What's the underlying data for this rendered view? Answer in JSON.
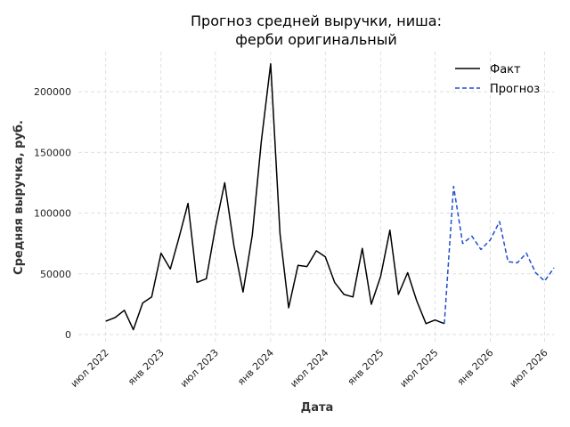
{
  "chart_data": {
    "type": "line",
    "title": [
      "Прогноз средней выручки, ниша:",
      "ферби оригинальный"
    ],
    "xlabel": "Дата",
    "ylabel": "Средняя выручка, руб.",
    "ylim": [
      -8000,
      233000
    ],
    "xlim": [
      "2022-04-01",
      "2026-08-01"
    ],
    "grid": true,
    "legend_position": "top-right",
    "y_ticks": [
      0,
      50000,
      100000,
      150000,
      200000
    ],
    "x_ticks": [
      {
        "label": "июл 2022",
        "date": "2022-07-01"
      },
      {
        "label": "янв 2023",
        "date": "2023-01-01"
      },
      {
        "label": "июл 2023",
        "date": "2023-07-01"
      },
      {
        "label": "янв 2024",
        "date": "2024-01-01"
      },
      {
        "label": "июл 2024",
        "date": "2024-07-01"
      },
      {
        "label": "янв 2025",
        "date": "2025-01-01"
      },
      {
        "label": "июл 2025",
        "date": "2025-07-01"
      },
      {
        "label": "янв 2026",
        "date": "2026-01-01"
      },
      {
        "label": "июл 2026",
        "date": "2026-07-01"
      }
    ],
    "series": [
      {
        "name": "Факт",
        "color": "#000000",
        "style": "solid",
        "points": [
          [
            "2022-07-01",
            11000
          ],
          [
            "2022-08-01",
            14000
          ],
          [
            "2022-09-01",
            20000
          ],
          [
            "2022-10-01",
            4000
          ],
          [
            "2022-11-01",
            26000
          ],
          [
            "2022-12-01",
            31000
          ],
          [
            "2023-01-01",
            67000
          ],
          [
            "2023-02-01",
            54000
          ],
          [
            "2023-03-01",
            79000
          ],
          [
            "2023-04-01",
            108000
          ],
          [
            "2023-05-01",
            43000
          ],
          [
            "2023-06-01",
            46000
          ],
          [
            "2023-07-01",
            88000
          ],
          [
            "2023-08-01",
            125000
          ],
          [
            "2023-09-01",
            73000
          ],
          [
            "2023-10-01",
            35000
          ],
          [
            "2023-11-01",
            82000
          ],
          [
            "2023-12-01",
            159000
          ],
          [
            "2024-01-01",
            223000
          ],
          [
            "2024-02-01",
            83000
          ],
          [
            "2024-03-01",
            22000
          ],
          [
            "2024-04-01",
            57000
          ],
          [
            "2024-05-01",
            56000
          ],
          [
            "2024-06-01",
            69000
          ],
          [
            "2024-07-01",
            64000
          ],
          [
            "2024-08-01",
            43000
          ],
          [
            "2024-09-01",
            33000
          ],
          [
            "2024-10-01",
            31000
          ],
          [
            "2024-11-01",
            71000
          ],
          [
            "2024-12-01",
            25000
          ],
          [
            "2025-01-01",
            48000
          ],
          [
            "2025-02-01",
            86000
          ],
          [
            "2025-03-01",
            33000
          ],
          [
            "2025-04-01",
            51000
          ],
          [
            "2025-05-01",
            28000
          ],
          [
            "2025-06-01",
            9000
          ],
          [
            "2025-07-01",
            12000
          ],
          [
            "2025-08-01",
            9000
          ]
        ]
      },
      {
        "name": "Прогноз",
        "color": "#1f4fd1",
        "style": "dashed",
        "points": [
          [
            "2025-08-01",
            9000
          ],
          [
            "2025-09-01",
            122000
          ],
          [
            "2025-10-01",
            75000
          ],
          [
            "2025-11-01",
            81000
          ],
          [
            "2025-12-01",
            70000
          ],
          [
            "2026-01-01",
            78000
          ],
          [
            "2026-02-01",
            93000
          ],
          [
            "2026-03-01",
            60000
          ],
          [
            "2026-04-01",
            59000
          ],
          [
            "2026-05-01",
            67000
          ],
          [
            "2026-06-01",
            51000
          ],
          [
            "2026-07-01",
            44000
          ],
          [
            "2026-08-01",
            55000
          ]
        ]
      }
    ]
  }
}
